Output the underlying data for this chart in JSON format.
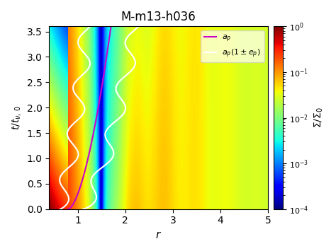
{
  "title": "M-m13-h036",
  "xlabel": "r",
  "ylabel": "t/t_{ν, 0}",
  "cbar_label": "Σ/Σ_0",
  "xlim": [
    0.4,
    5.0
  ],
  "ylim": [
    0.0,
    3.6
  ],
  "r_min": 0.4,
  "r_max": 5.0,
  "t_min": 0.0,
  "t_max": 3.6,
  "vmin": 0.0001,
  "vmax": 1.0,
  "nr": 300,
  "nt": 200,
  "planet_a": 1.5,
  "planet_e": 0.3,
  "cmap": "jet",
  "legend_labels": [
    "a_p",
    "a_p(1 ± e_p)"
  ],
  "line_color_ap": "#cc00cc",
  "line_color_ep": "white"
}
